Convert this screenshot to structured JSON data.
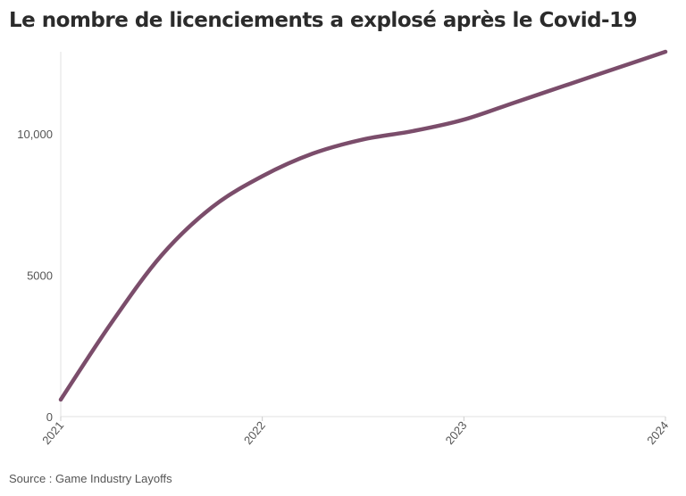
{
  "chart_data": {
    "type": "line",
    "title": "Le nombre de licenciements a explosé après le Covid-19",
    "xlabel": "",
    "ylabel": "",
    "x_ticks": [
      "2021",
      "2022",
      "2023",
      "2024"
    ],
    "y_ticks": [
      0,
      5000,
      10000
    ],
    "y_tick_labels": [
      "0",
      "5000",
      "10,000"
    ],
    "xlim": [
      2021,
      2024
    ],
    "ylim": [
      0,
      12900
    ],
    "series": [
      {
        "color": "#7b4d6b",
        "x": [
          2021.0,
          2021.25,
          2021.5,
          2021.75,
          2022.0,
          2022.25,
          2022.5,
          2022.75,
          2023.0,
          2023.25,
          2023.5,
          2023.75,
          2024.0
        ],
        "y": [
          600,
          3300,
          5700,
          7400,
          8500,
          9300,
          9800,
          10100,
          10500,
          11100,
          11700,
          12300,
          12900
        ]
      }
    ],
    "grid": false,
    "legend": "none"
  },
  "source": "Source : Game Industry Layoffs"
}
